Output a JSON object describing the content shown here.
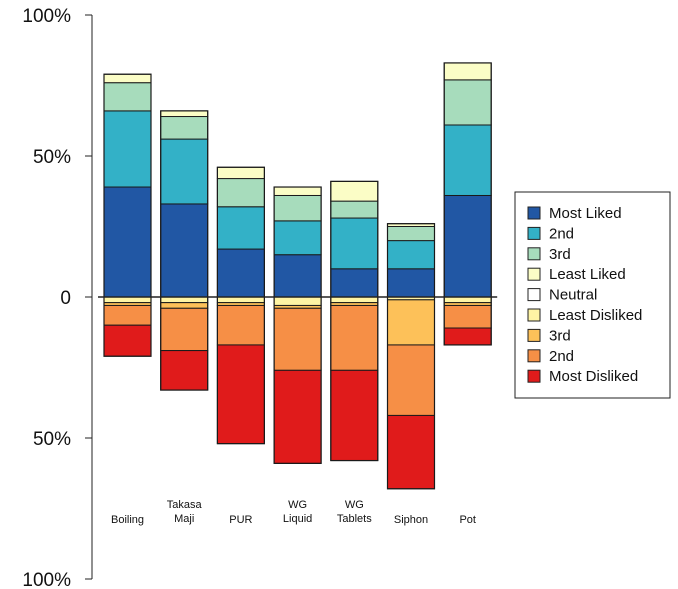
{
  "chart_data": {
    "type": "bar",
    "stacked": "diverging",
    "categories": [
      [
        "Boiling"
      ],
      [
        "Takasa",
        "Maji"
      ],
      [
        "PUR"
      ],
      [
        "WG",
        "Liquid"
      ],
      [
        "WG",
        "Tablets"
      ],
      [
        "Siphon"
      ],
      [
        "Pot"
      ]
    ],
    "y_ticks": [
      {
        "value": 100,
        "label": "100%"
      },
      {
        "value": 50,
        "label": "50%"
      },
      {
        "value": 0,
        "label": "0"
      },
      {
        "value": -50,
        "label": "50%"
      },
      {
        "value": -100,
        "label": "100%"
      }
    ],
    "ylim": [
      -100,
      100
    ],
    "grid": false,
    "legend_position": "right",
    "series": [
      {
        "name": "Most Liked",
        "color": "#2157a4",
        "values": [
          39,
          33,
          17,
          15,
          10,
          10,
          36
        ]
      },
      {
        "name": "2nd",
        "color": "#33b1c7",
        "values": [
          27,
          23,
          15,
          12,
          18,
          10,
          25
        ]
      },
      {
        "name": "3rd",
        "color": "#a7dcbc",
        "values": [
          10,
          8,
          10,
          9,
          6,
          5,
          16
        ]
      },
      {
        "name": "Least Liked",
        "color": "#fbfdc6",
        "values": [
          3,
          2,
          4,
          3,
          7,
          1,
          6
        ]
      },
      {
        "name": "Neutral",
        "color": "#ffffff",
        "values": [
          0,
          0,
          0,
          0,
          0,
          0,
          0
        ]
      },
      {
        "name": "Least Disliked",
        "color": "#fef4a4",
        "values": [
          -2,
          -2,
          -2,
          -3,
          -2,
          -1,
          -2
        ]
      },
      {
        "name": "3rd",
        "color": "#fdc159",
        "values": [
          -1,
          -2,
          -1,
          -1,
          -1,
          -16,
          -1
        ]
      },
      {
        "name": "2nd",
        "color": "#f68f46",
        "values": [
          -7,
          -15,
          -14,
          -22,
          -23,
          -25,
          -8
        ]
      },
      {
        "name": "Most Disliked",
        "color": "#e01b1b",
        "values": [
          -11,
          -14,
          -35,
          -33,
          -32,
          -26,
          -6
        ]
      }
    ]
  }
}
